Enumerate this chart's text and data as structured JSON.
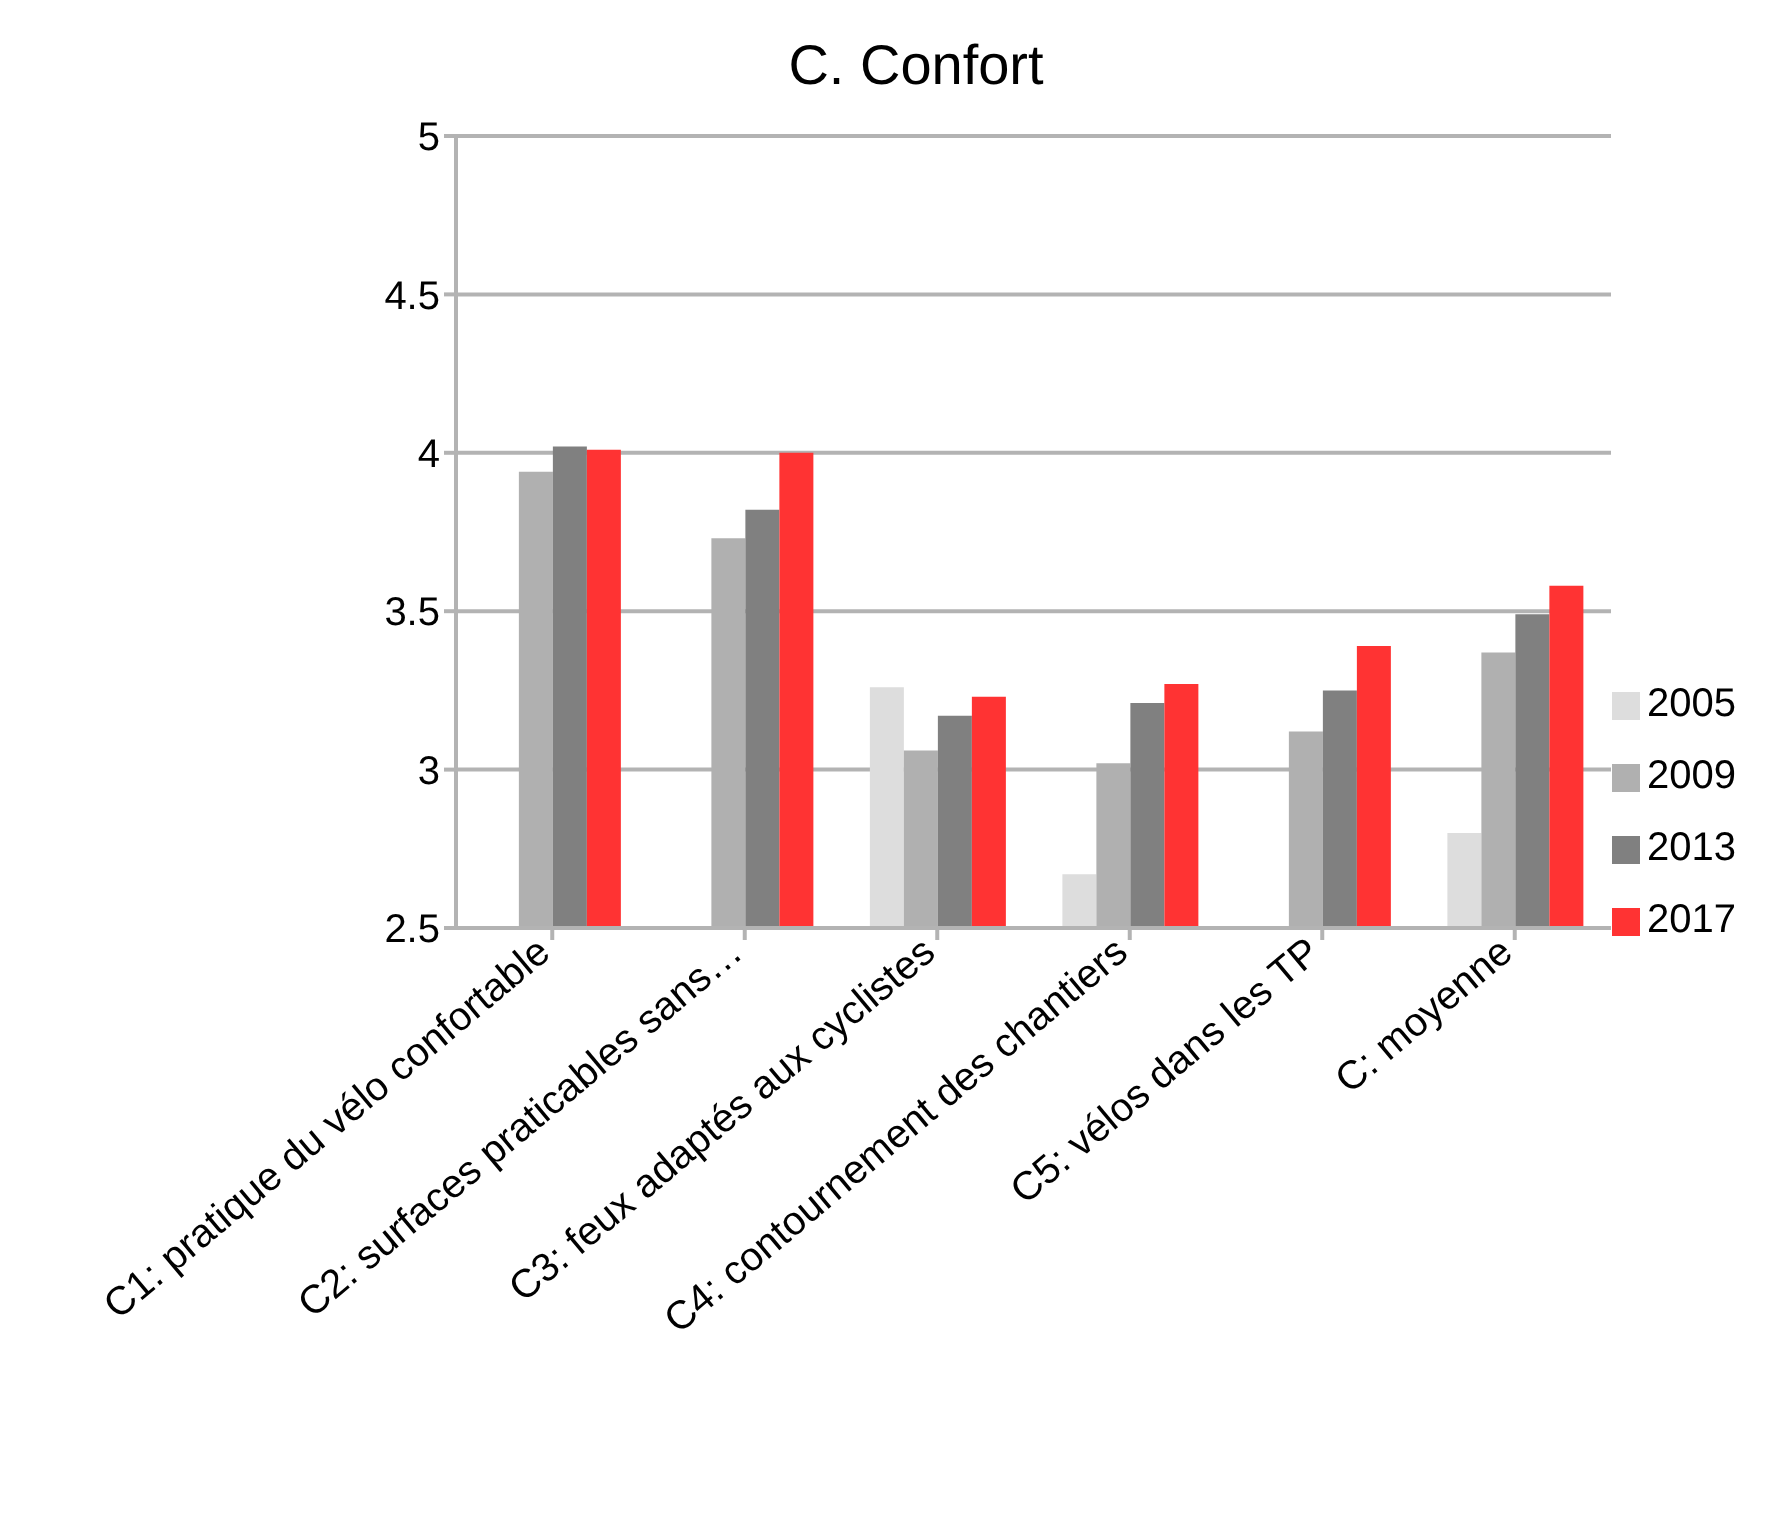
{
  "chart_data": {
    "type": "bar",
    "title": "C. Confort",
    "categories": [
      "C1: pratique du vélo confortable",
      "C2: surfaces praticables sans…",
      "C3: feux adaptés aux cyclistes",
      "C4: contournement des chantiers",
      "C5: vélos dans les TP",
      "C: moyenne"
    ],
    "series": [
      {
        "name": "2005",
        "color": "#dddddd",
        "values": [
          null,
          null,
          3.26,
          2.67,
          null,
          2.8
        ]
      },
      {
        "name": "2009",
        "color": "#b0b0b0",
        "values": [
          3.94,
          3.73,
          3.06,
          3.02,
          3.12,
          3.37
        ]
      },
      {
        "name": "2013",
        "color": "#808080",
        "values": [
          4.02,
          3.82,
          3.17,
          3.21,
          3.25,
          3.49
        ]
      },
      {
        "name": "2017",
        "color": "#ff3333",
        "values": [
          4.01,
          4.0,
          3.23,
          3.27,
          3.39,
          3.58
        ]
      }
    ],
    "ylim": [
      2.5,
      5
    ],
    "yticks": [
      2.5,
      3,
      3.5,
      4,
      4.5,
      5
    ],
    "grid": "y",
    "legend": "right"
  }
}
